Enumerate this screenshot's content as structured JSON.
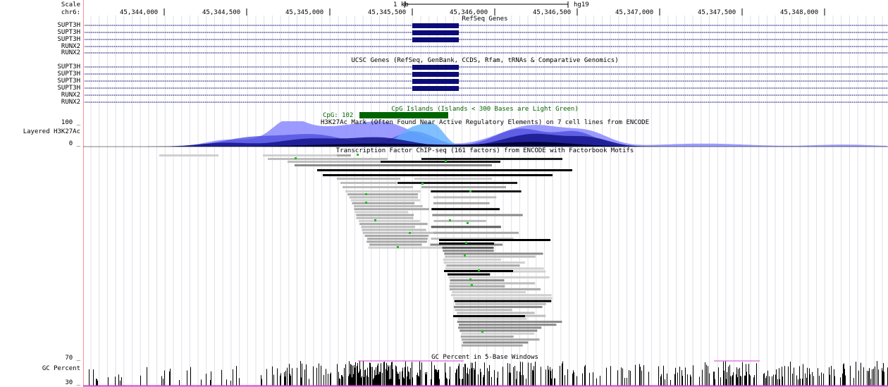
{
  "left_labels": {
    "scale": "Scale",
    "chrom": "chr6:",
    "refseq_genes": [
      "SUPT3H",
      "SUPT3H",
      "SUPT3H",
      "RUNX2",
      "RUNX2"
    ],
    "ucsc_genes": [
      "SUPT3H",
      "SUPT3H",
      "SUPT3H",
      "SUPT3H",
      "RUNX2",
      "RUNX2"
    ],
    "h3k27ac_max": "100 _",
    "h3k27ac_label": "Layered H3K27Ac",
    "h3k27ac_min": "0 _",
    "gc_max": "70 _",
    "gc_label": "GC Percent",
    "gc_min": "30 _"
  },
  "ruler": {
    "scale_bar_label": "1 kb",
    "assembly": "hg19",
    "positions": [
      "45,344,000",
      "45,344,500",
      "45,345,000",
      "45,345,500",
      "45,346,000",
      "45,346,500",
      "45,347,000",
      "45,347,500",
      "45,348,000"
    ]
  },
  "track_titles": {
    "refseq": "RefSeq Genes",
    "ucsc": "UCSC Genes (RefSeq, GenBank, CCDS, Rfam, tRNAs & Comparative Genomics)",
    "cpg": "CpG Islands (Islands < 300 Bases are Light Green)",
    "cpg_item": "CpG: 102",
    "h3k27ac": "H3K27Ac Mark (Often Found Near Active Regulatory Elements) on 7 cell lines from ENCODE",
    "tfbs": "Transcription Factor ChIP-seq (161 factors) from ENCODE with Factorbook Motifs",
    "gc": "GC Percent in 5-Base Windows"
  },
  "colors": {
    "gene": "#0c0c78",
    "cpg": "#006400",
    "grid": "#e0e0e8",
    "left_border": "#ff9090",
    "gc_bars": "#000000",
    "gc_baseline": "#d040d0"
  }
}
